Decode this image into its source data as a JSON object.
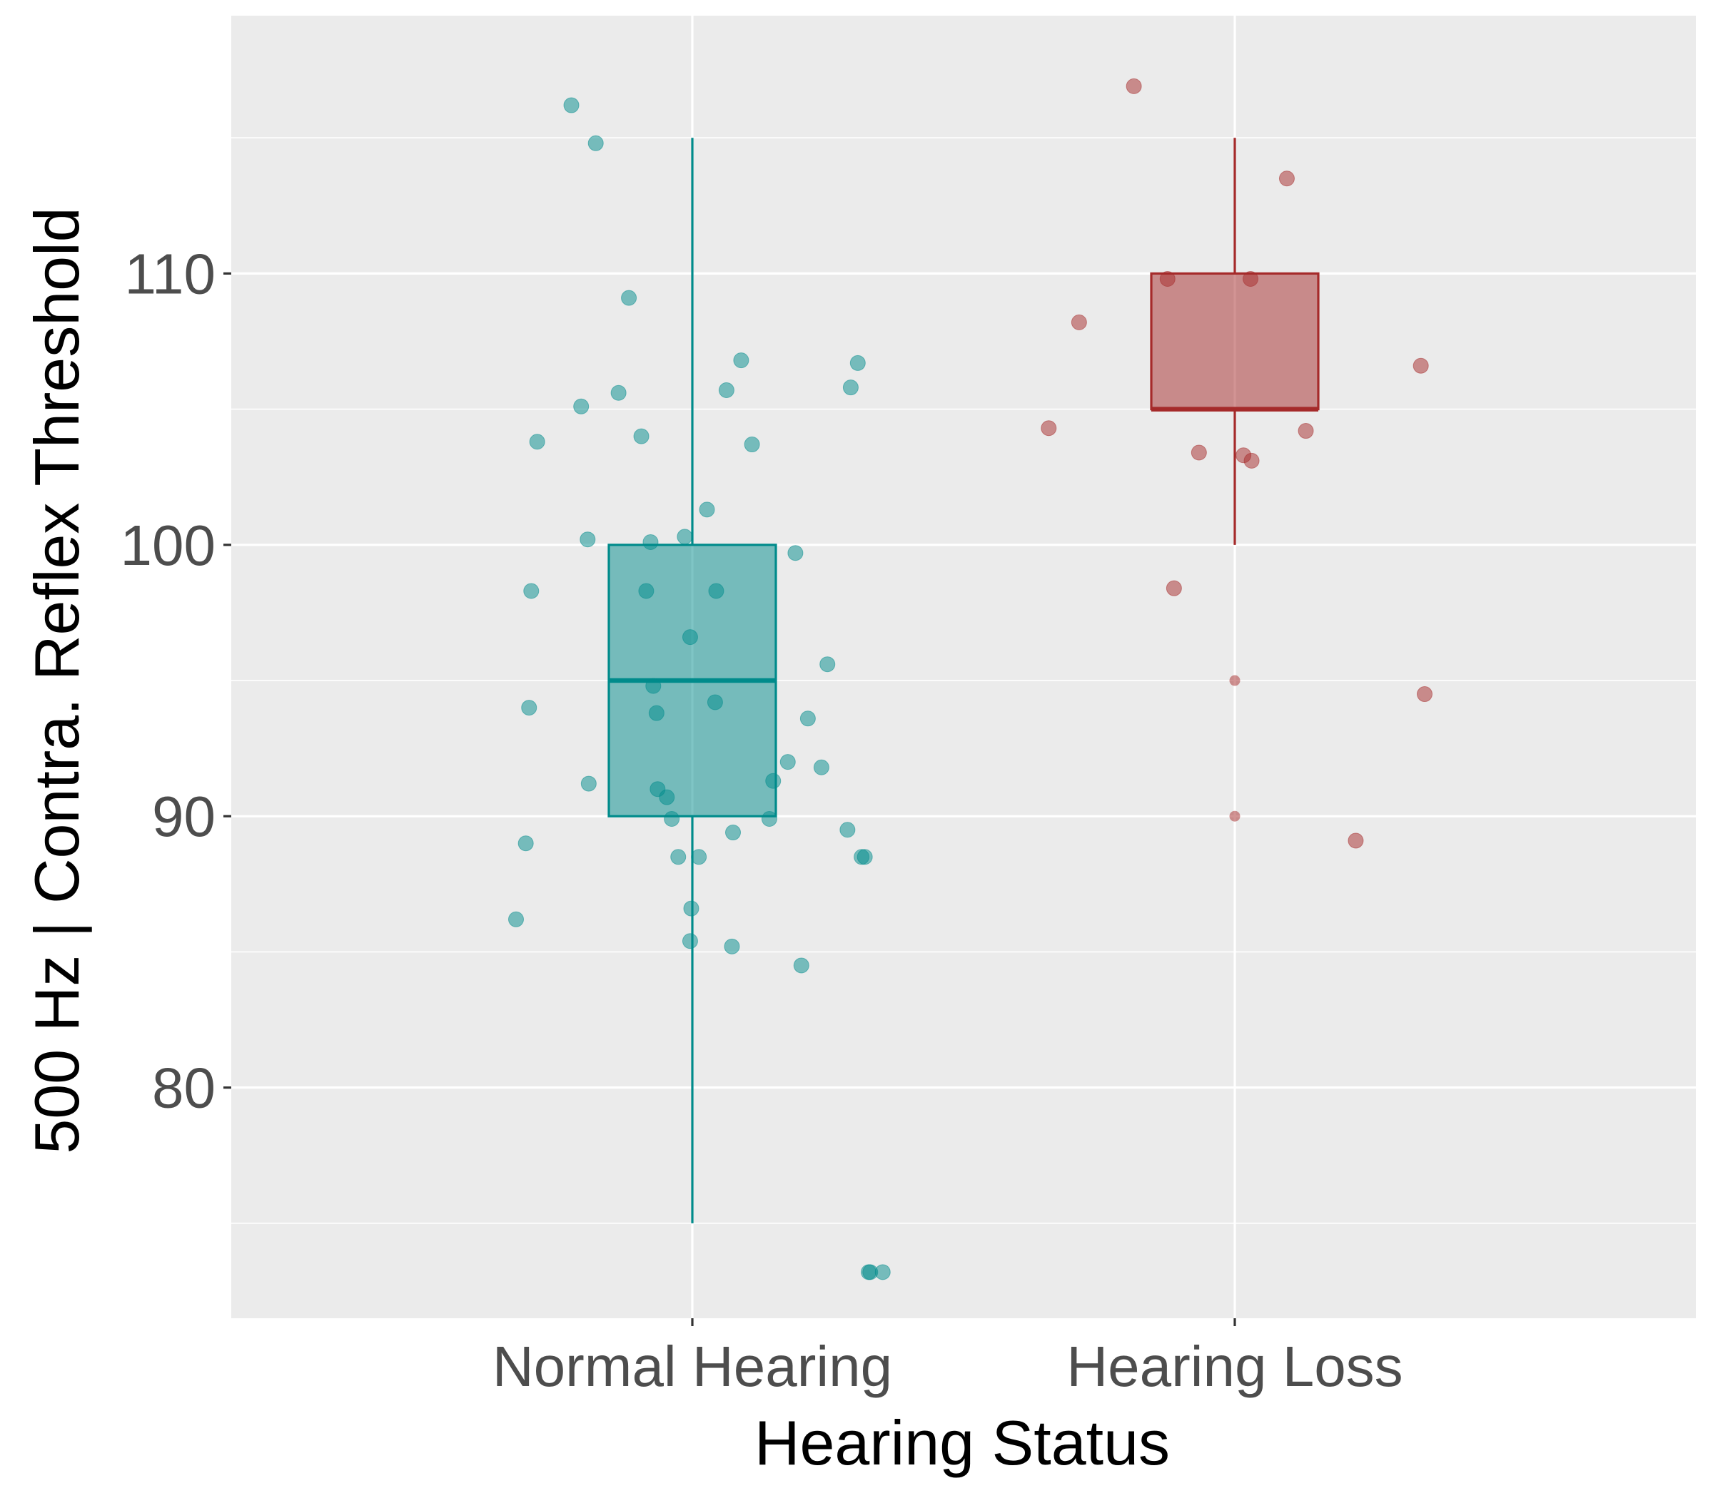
{
  "chart_data": {
    "type": "box",
    "title": "",
    "xlabel": "Hearing Status",
    "ylabel": "500 Hz | Contra. Reflex Threshold",
    "ylim": [
      71.5,
      119.5
    ],
    "yticks": [
      80,
      90,
      100,
      110
    ],
    "categories": [
      "Normal Hearing",
      "Hearing Loss"
    ],
    "grid": true,
    "legend": "none",
    "colors": {
      "panel_bg": "#EBEBEB",
      "grid": "#FFFFFF",
      "normal_hearing": "#008B8B",
      "hearing_loss": "#A52A2A",
      "tick_label": "#4D4D4D",
      "axis_title": "#000000"
    },
    "boxes": [
      {
        "category": "Normal Hearing",
        "whisker_low": 75,
        "q1": 90,
        "median": 95,
        "q3": 100,
        "whisker_high": 115,
        "outliers": []
      },
      {
        "category": "Hearing Loss",
        "whisker_low": 100,
        "q1": 105,
        "median": 105,
        "q3": 110,
        "whisker_high": 115,
        "outliers": [
          95,
          90
        ]
      }
    ],
    "points": [
      {
        "category": "Normal Hearing",
        "jitter": [
          -0.223,
          -0.286,
          -0.205,
          -0.297,
          -0.301,
          -0.307,
          -0.325,
          -0.193,
          -0.191,
          -0.178,
          -0.136,
          -0.117,
          -0.094,
          -0.085,
          -0.077,
          -0.072,
          -0.066,
          -0.064,
          -0.047,
          -0.038,
          -0.026,
          -0.014,
          -0.004,
          -0.004,
          -0.002,
          0.012,
          0.027,
          0.042,
          0.044,
          0.063,
          0.073,
          0.075,
          0.09,
          0.11,
          0.142,
          0.149,
          0.176,
          0.19,
          0.201,
          0.213,
          0.238,
          0.249,
          0.286,
          0.305,
          0.292,
          0.312,
          0.325,
          0.318,
          0.328,
          0.351
        ],
        "y": [
          116.2,
          103.8,
          105.1,
          98.3,
          94.0,
          89.0,
          86.2,
          100.2,
          91.2,
          114.8,
          105.6,
          109.1,
          104.0,
          98.3,
          100.1,
          94.8,
          93.8,
          91.0,
          90.7,
          89.9,
          88.5,
          100.3,
          96.6,
          85.4,
          86.6,
          88.5,
          101.3,
          94.2,
          98.3,
          105.7,
          85.2,
          89.4,
          106.8,
          103.7,
          89.9,
          91.3,
          92.0,
          99.7,
          84.5,
          93.6,
          91.8,
          95.6,
          89.5,
          106.7,
          105.8,
          88.5,
          73.2,
          88.5,
          73.2,
          73.2
        ]
      },
      {
        "category": "Hearing Loss",
        "jitter": [
          -0.343,
          -0.287,
          -0.186,
          -0.124,
          -0.112,
          -0.066,
          0.016,
          0.029,
          0.031,
          0.096,
          0.131,
          0.343,
          0.35,
          0.223
        ],
        "y": [
          104.3,
          108.2,
          116.9,
          109.8,
          98.4,
          103.4,
          103.3,
          109.8,
          103.1,
          113.5,
          104.2,
          106.6,
          94.5,
          89.1
        ]
      }
    ]
  }
}
